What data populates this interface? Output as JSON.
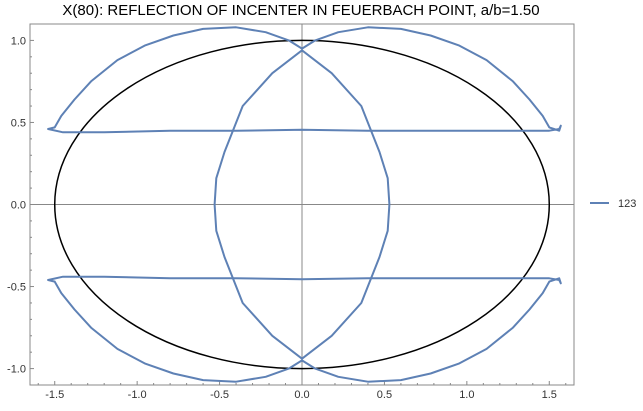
{
  "chart_data": {
    "type": "line",
    "title": "X(80): REFLECTION OF INCENTER IN FEUERBACH POINT, a/b=1.50",
    "xlabel": "",
    "ylabel": "",
    "xlim": [
      -1.65,
      1.65
    ],
    "ylim": [
      -1.1,
      1.1
    ],
    "x_ticks": [
      -1.5,
      -1.0,
      -0.5,
      0.0,
      0.5,
      1.0,
      1.5
    ],
    "x_tick_labels": [
      "-1.5",
      "-1.0",
      "-0.5",
      "0.0",
      "0.5",
      "1.0",
      "1.5"
    ],
    "y_ticks": [
      -1.0,
      -0.5,
      0.0,
      0.5,
      1.0
    ],
    "y_tick_labels": [
      "-1.0",
      "-0.5",
      "0.0",
      "0.5",
      "1.0"
    ],
    "legend_position": "right",
    "grid": false,
    "reference_ellipse": {
      "a": 1.5,
      "b": 1.0,
      "color": "#000000"
    },
    "series": [
      {
        "name": "123",
        "color": "#5E81B5",
        "segments": [
          [
            [
              -1.5,
              0.47
            ],
            [
              -1.46,
              0.54
            ],
            [
              -1.38,
              0.64
            ],
            [
              -1.28,
              0.75
            ],
            [
              -1.12,
              0.88
            ],
            [
              -0.95,
              0.97
            ],
            [
              -0.78,
              1.03
            ],
            [
              -0.6,
              1.07
            ],
            [
              -0.4,
              1.08
            ],
            [
              -0.22,
              1.05
            ],
            [
              -0.08,
              1.0
            ],
            [
              0.0,
              0.95
            ],
            [
              0.08,
              1.0
            ],
            [
              0.22,
              1.05
            ],
            [
              0.4,
              1.08
            ],
            [
              0.6,
              1.07
            ],
            [
              0.78,
              1.03
            ],
            [
              0.95,
              0.97
            ],
            [
              1.12,
              0.88
            ],
            [
              1.28,
              0.75
            ],
            [
              1.38,
              0.64
            ],
            [
              1.46,
              0.54
            ],
            [
              1.5,
              0.47
            ],
            [
              1.56,
              0.45
            ],
            [
              1.57,
              0.48
            ],
            [
              1.56,
              0.46
            ],
            [
              1.5,
              0.45
            ],
            [
              1.2,
              0.45
            ],
            [
              0.8,
              0.45
            ],
            [
              0.4,
              0.45
            ],
            [
              0.0,
              0.455
            ],
            [
              -0.4,
              0.45
            ],
            [
              -0.8,
              0.45
            ],
            [
              -1.2,
              0.44
            ],
            [
              -1.45,
              0.44
            ],
            [
              -1.54,
              0.46
            ],
            [
              -1.5,
              0.47
            ]
          ],
          [
            [
              -1.5,
              -0.47
            ],
            [
              -1.46,
              -0.54
            ],
            [
              -1.38,
              -0.64
            ],
            [
              -1.28,
              -0.75
            ],
            [
              -1.12,
              -0.88
            ],
            [
              -0.95,
              -0.97
            ],
            [
              -0.78,
              -1.03
            ],
            [
              -0.6,
              -1.07
            ],
            [
              -0.4,
              -1.08
            ],
            [
              -0.22,
              -1.05
            ],
            [
              -0.08,
              -1.0
            ],
            [
              0.0,
              -0.95
            ],
            [
              0.08,
              -1.0
            ],
            [
              0.22,
              -1.05
            ],
            [
              0.4,
              -1.08
            ],
            [
              0.6,
              -1.07
            ],
            [
              0.78,
              -1.03
            ],
            [
              0.95,
              -0.97
            ],
            [
              1.12,
              -0.88
            ],
            [
              1.28,
              -0.75
            ],
            [
              1.38,
              -0.64
            ],
            [
              1.46,
              -0.54
            ],
            [
              1.5,
              -0.47
            ],
            [
              1.56,
              -0.45
            ],
            [
              1.57,
              -0.48
            ],
            [
              1.56,
              -0.46
            ],
            [
              1.5,
              -0.45
            ],
            [
              1.2,
              -0.45
            ],
            [
              0.8,
              -0.45
            ],
            [
              0.4,
              -0.45
            ],
            [
              0.0,
              -0.455
            ],
            [
              -0.4,
              -0.45
            ],
            [
              -0.8,
              -0.45
            ],
            [
              -1.2,
              -0.44
            ],
            [
              -1.45,
              -0.44
            ],
            [
              -1.54,
              -0.46
            ],
            [
              -1.5,
              -0.47
            ]
          ],
          [
            [
              0.0,
              0.94
            ],
            [
              -0.18,
              0.8
            ],
            [
              -0.36,
              0.6
            ],
            [
              -0.47,
              0.32
            ],
            [
              -0.52,
              0.16
            ],
            [
              -0.53,
              0.0
            ],
            [
              -0.52,
              -0.16
            ],
            [
              -0.47,
              -0.32
            ],
            [
              -0.36,
              -0.6
            ],
            [
              -0.18,
              -0.8
            ],
            [
              0.0,
              -0.94
            ],
            [
              0.18,
              -0.8
            ],
            [
              0.36,
              -0.6
            ],
            [
              0.47,
              -0.32
            ],
            [
              0.52,
              -0.16
            ],
            [
              0.53,
              0.0
            ],
            [
              0.52,
              0.16
            ],
            [
              0.47,
              0.32
            ],
            [
              0.36,
              0.6
            ],
            [
              0.18,
              0.8
            ],
            [
              0.0,
              0.94
            ]
          ]
        ]
      }
    ]
  }
}
